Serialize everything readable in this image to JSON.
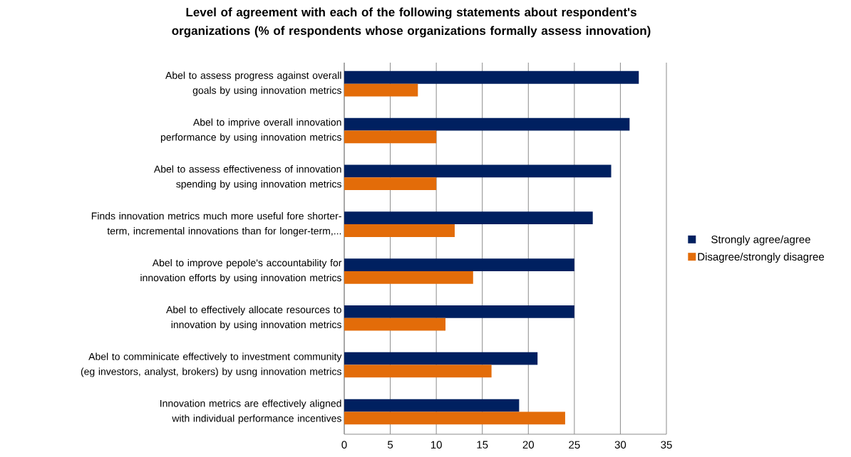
{
  "chart_data": {
    "type": "bar",
    "orientation": "horizontal",
    "title": "Level of agreement with each of the following statements about respondent's organizations (% of respondents whose organizations formally assess innovation)",
    "categories": [
      "Abel to assess progress against overall goals by using innovation metrics",
      "Abel to imprive overall innovation performance by using innovation metrics",
      "Abel to assess effectiveness of innovation spending by using innovation metrics",
      "Finds innovation metrics much more useful fore shorter-term, incremental innovations than for longer-term,...",
      "Abel to improve pepole's accountability for innovation efforts by using innovation metrics",
      "Abel to effectively allocate resources to innovation by using innovation metrics",
      "Abel to comminicate effectively to investment community (eg investors, analyst, brokers) by usng innovation metrics",
      "Innovation metrics are effectively aligned with individual performance incentives"
    ],
    "series": [
      {
        "name": "Strongly agree/agree",
        "color": "#002060",
        "values": [
          32,
          31,
          29,
          27,
          25,
          25,
          21,
          19
        ]
      },
      {
        "name": "Disagree/strongly disagree",
        "color": "#e36c09",
        "values": [
          8,
          10,
          10,
          12,
          14,
          11,
          16,
          24
        ]
      }
    ],
    "xlim": [
      0,
      35
    ],
    "xticks": [
      0,
      5,
      10,
      15,
      20,
      25,
      30,
      35
    ],
    "grid": "x",
    "legend": "right"
  }
}
